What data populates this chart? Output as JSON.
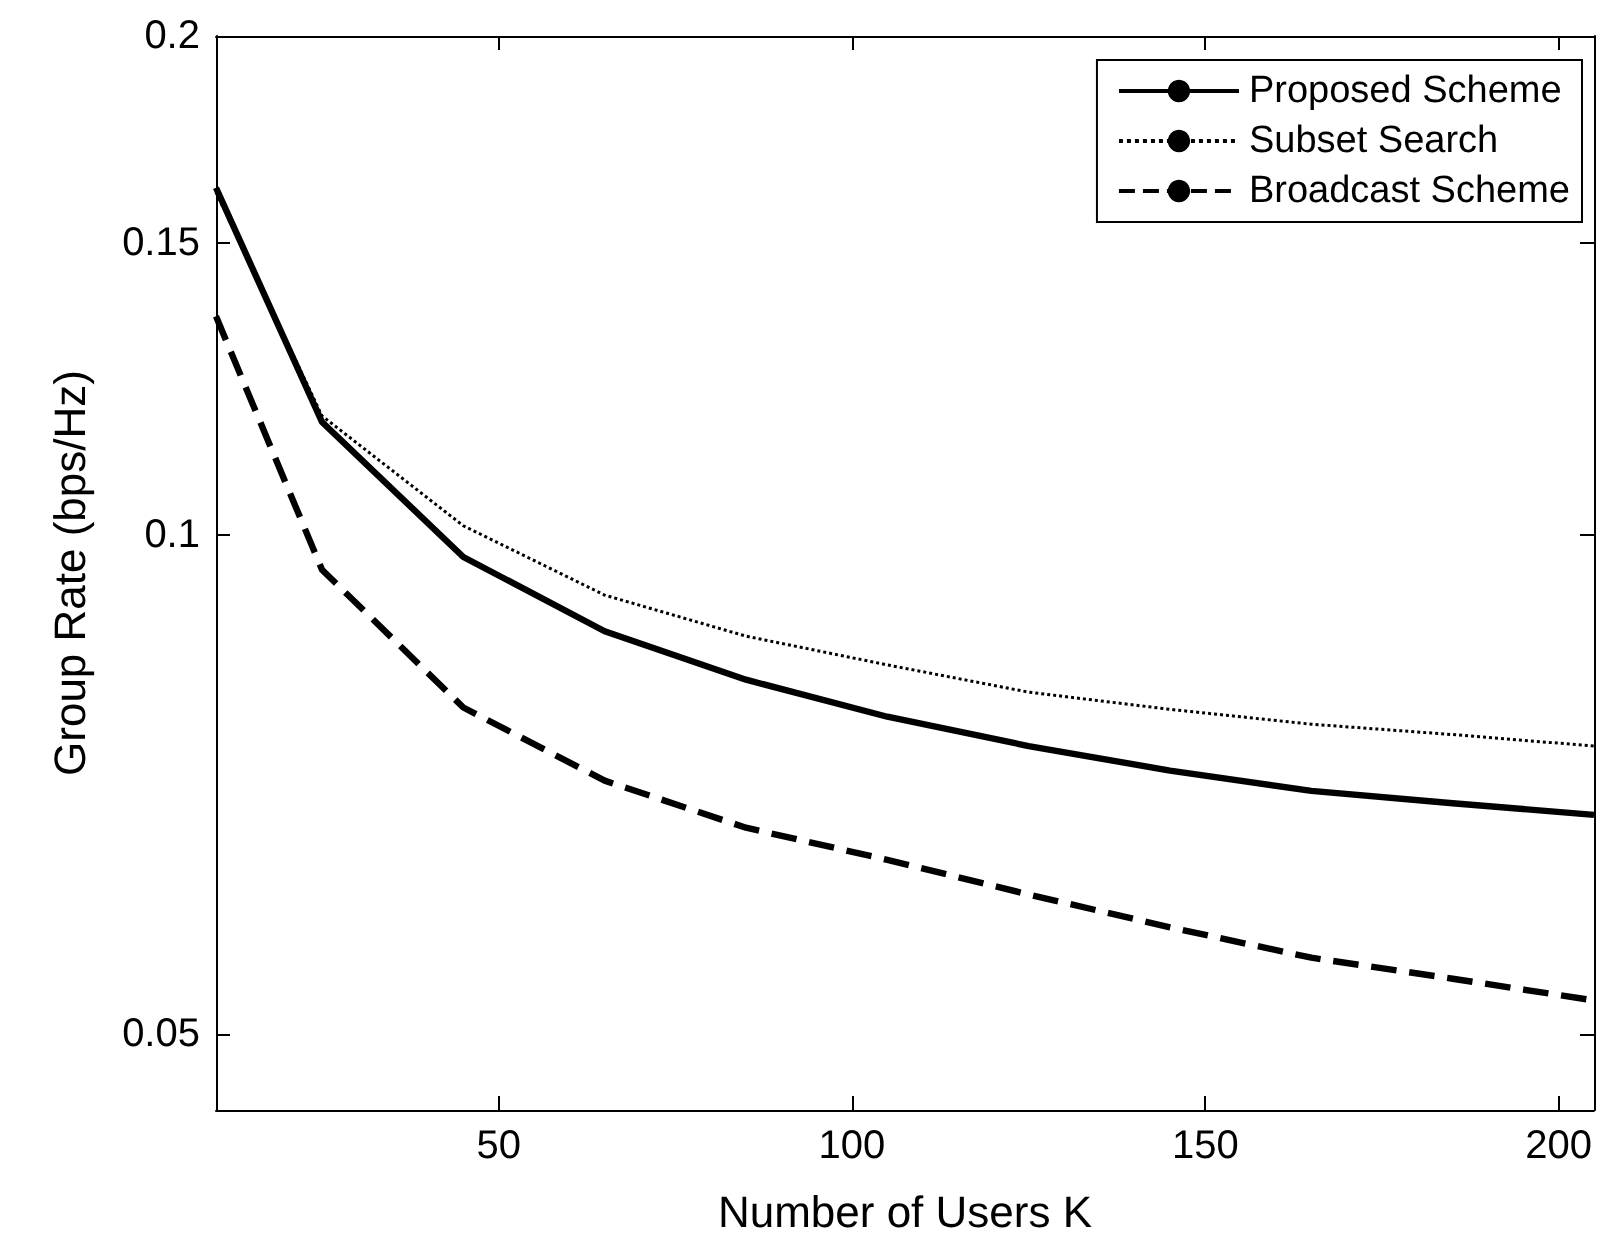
{
  "chart_data": {
    "type": "line",
    "xlabel": "Number of Users K",
    "ylabel": "Group Rate (bps/Hz)",
    "x": [
      10,
      25,
      45,
      65,
      85,
      105,
      125,
      145,
      165,
      185,
      205
    ],
    "series": [
      {
        "name": "Proposed Scheme",
        "color": "#000000",
        "line_style": "solid",
        "values": [
          0.162,
          0.117,
          0.097,
          0.0875,
          0.0818,
          0.0777,
          0.0746,
          0.0721,
          0.0701,
          0.0689,
          0.0678
        ]
      },
      {
        "name": "Subset Search",
        "color": "#000000",
        "line_style": "dotted",
        "values": [
          0.161,
          0.118,
          0.1013,
          0.092,
          0.0869,
          0.0835,
          0.0804,
          0.0785,
          0.0769,
          0.0758,
          0.0746
        ]
      },
      {
        "name": "Broadcast Scheme",
        "color": "#000000",
        "line_style": "dashed",
        "values": [
          0.1355,
          0.0953,
          0.0787,
          0.0711,
          0.0666,
          0.0637,
          0.0607,
          0.058,
          0.0556,
          0.054,
          0.0524
        ]
      }
    ],
    "xlim": [
      10,
      205
    ],
    "xticks": [
      50,
      100,
      150,
      200
    ],
    "ylim": [
      0.045,
      0.2
    ],
    "yticks": [
      0.05,
      0.1,
      0.15,
      0.2
    ],
    "log": "y",
    "grid": false,
    "legend": "top right",
    "marker": "none"
  }
}
